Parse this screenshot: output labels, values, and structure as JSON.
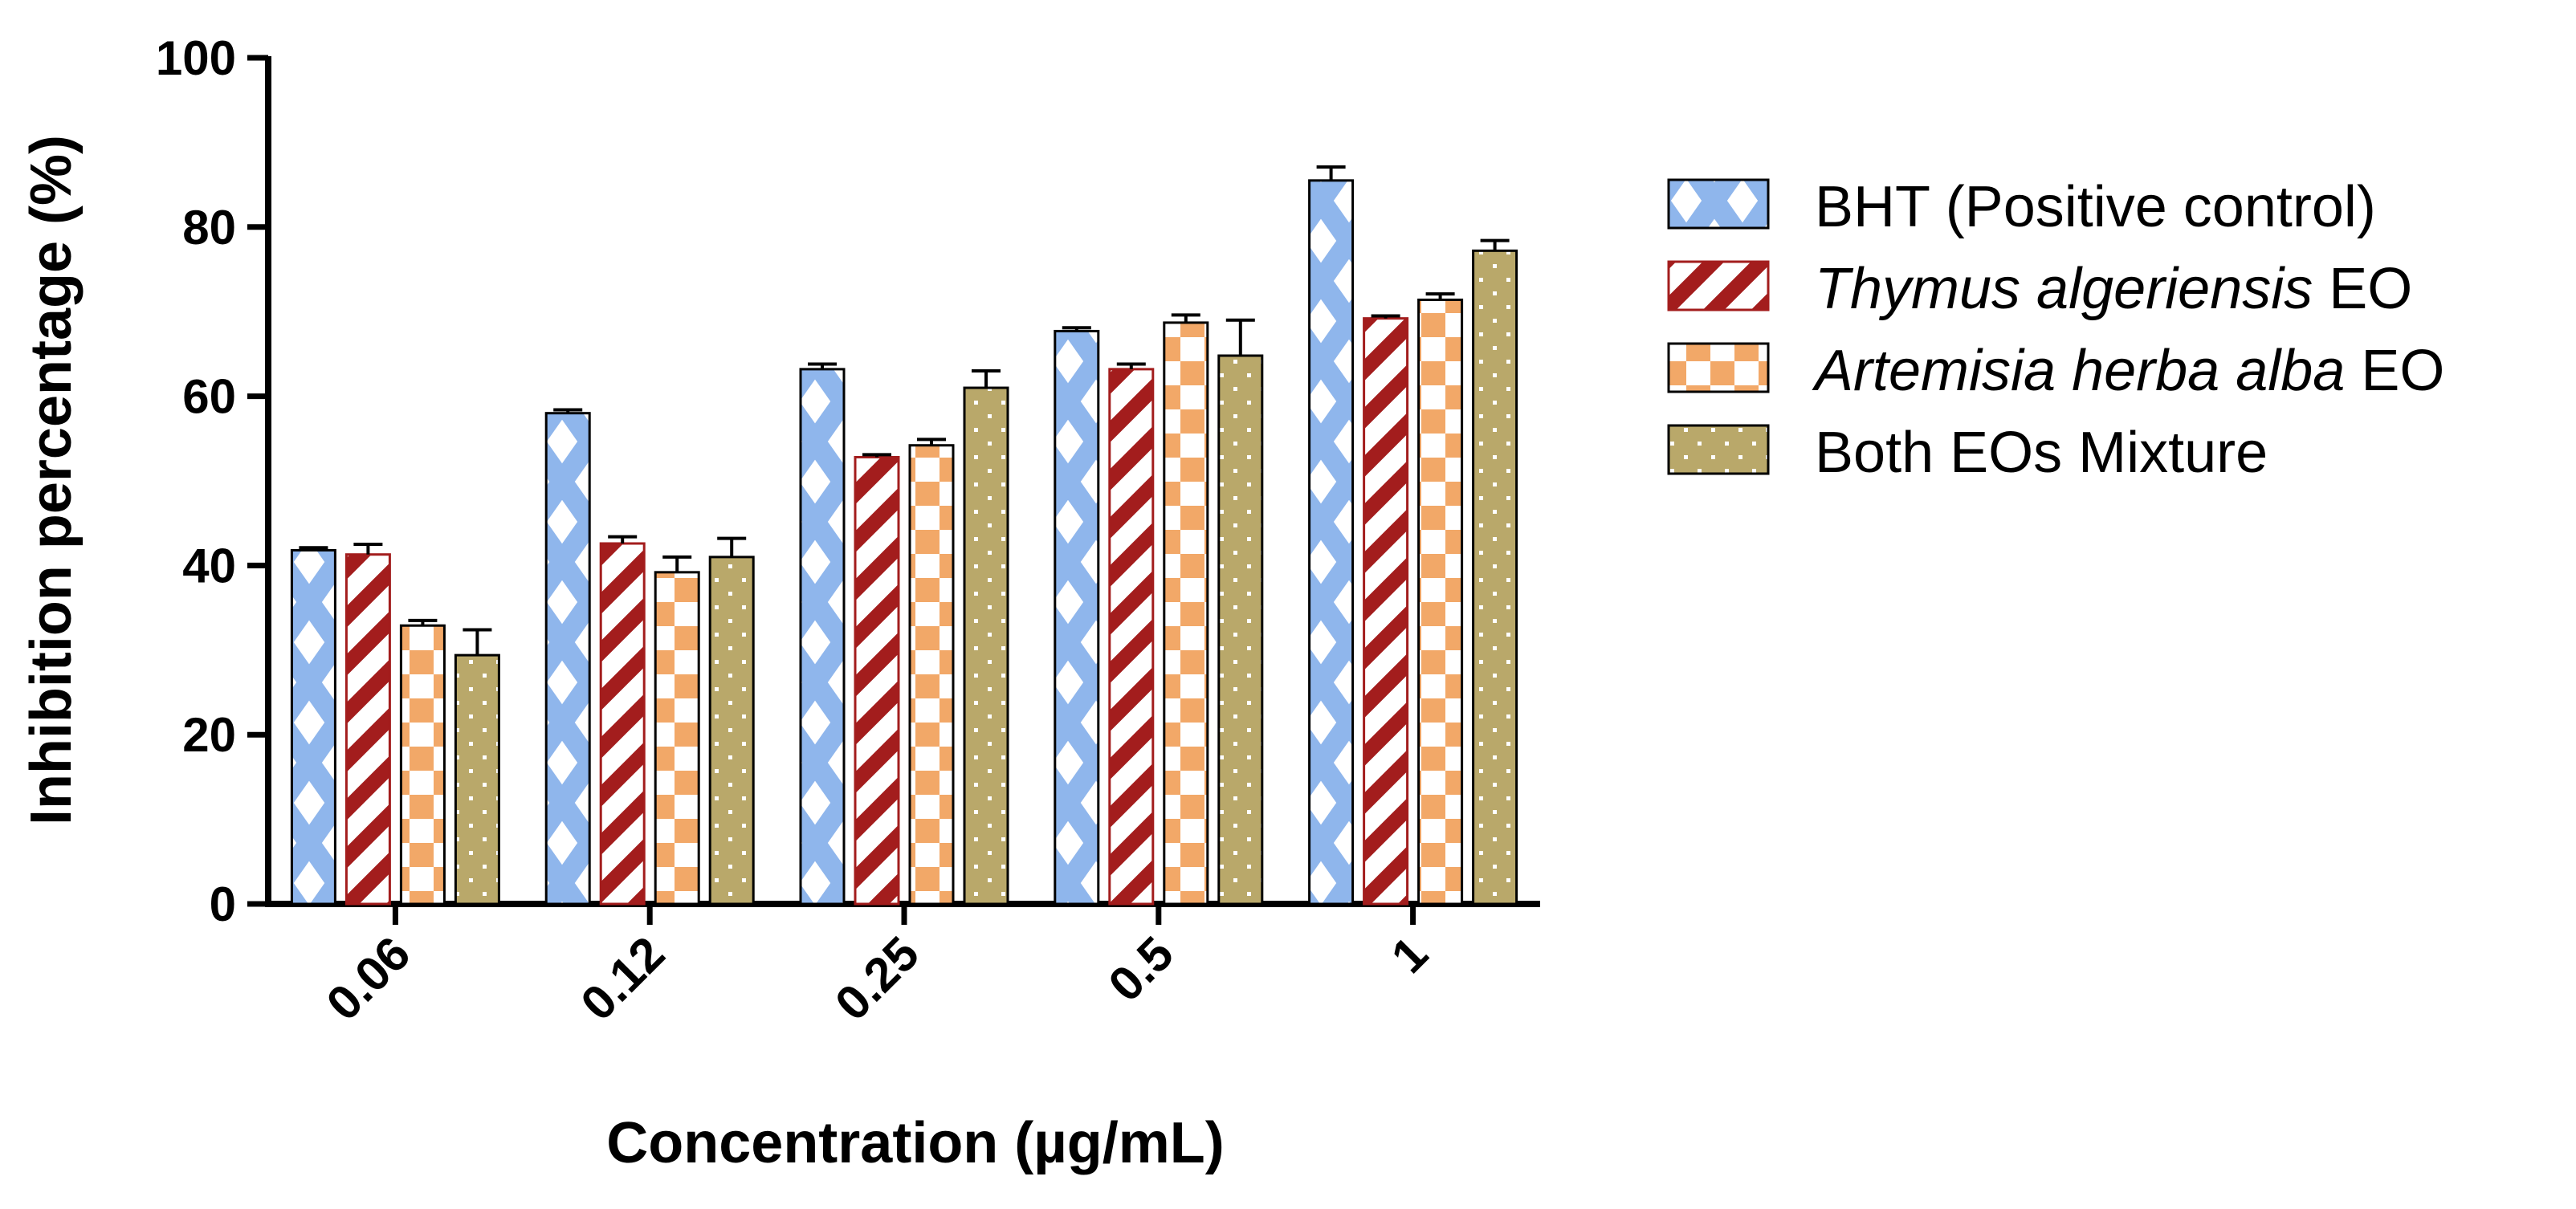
{
  "chart_data": {
    "type": "bar",
    "title": "",
    "xlabel": "Concentration (µg/mL)",
    "ylabel": "Inhibition percentage  (%)",
    "ylim": [
      0,
      100
    ],
    "yticks": [
      "0",
      "20",
      "40",
      "60",
      "80",
      "100"
    ],
    "categories": [
      "0.06",
      "0.12",
      "0.25",
      "0.5",
      "1"
    ],
    "grid": false,
    "legend_position": "right",
    "series": [
      {
        "name": "BHT (Positive control)",
        "name_parts": {
          "italic": "",
          "rest": "BHT (Positive control)"
        },
        "pattern": "crosshatch-diamond",
        "color": "#8fb6ec",
        "values": [
          41.8,
          58.0,
          63.2,
          67.7,
          85.5
        ],
        "errors": [
          0.3,
          0.4,
          0.6,
          0.4,
          1.6
        ]
      },
      {
        "name": "Thymus algeriensis EO",
        "name_parts": {
          "italic": "Thymus algeriensis",
          "rest": " EO"
        },
        "pattern": "diagonal-stripes",
        "color": "#a31d1d",
        "values": [
          41.3,
          42.6,
          52.8,
          63.2,
          69.2
        ],
        "errors": [
          1.2,
          0.8,
          0.3,
          0.6,
          0.3
        ]
      },
      {
        "name": "Artemisia herba alba EO",
        "name_parts": {
          "italic": "Artemisia herba alba",
          "rest": " EO"
        },
        "pattern": "checkerboard",
        "color": "#f2a868",
        "values": [
          32.9,
          39.2,
          54.2,
          68.7,
          71.4
        ],
        "errors": [
          0.6,
          1.8,
          0.7,
          0.9,
          0.7
        ]
      },
      {
        "name": "Both EOs Mixture",
        "name_parts": {
          "italic": "",
          "rest": "Both EOs Mixture"
        },
        "pattern": "dots",
        "color": "#b9a86a",
        "values": [
          29.4,
          41.0,
          61.0,
          64.8,
          77.2
        ],
        "errors": [
          3.0,
          2.2,
          2.0,
          4.2,
          1.2
        ]
      }
    ]
  }
}
